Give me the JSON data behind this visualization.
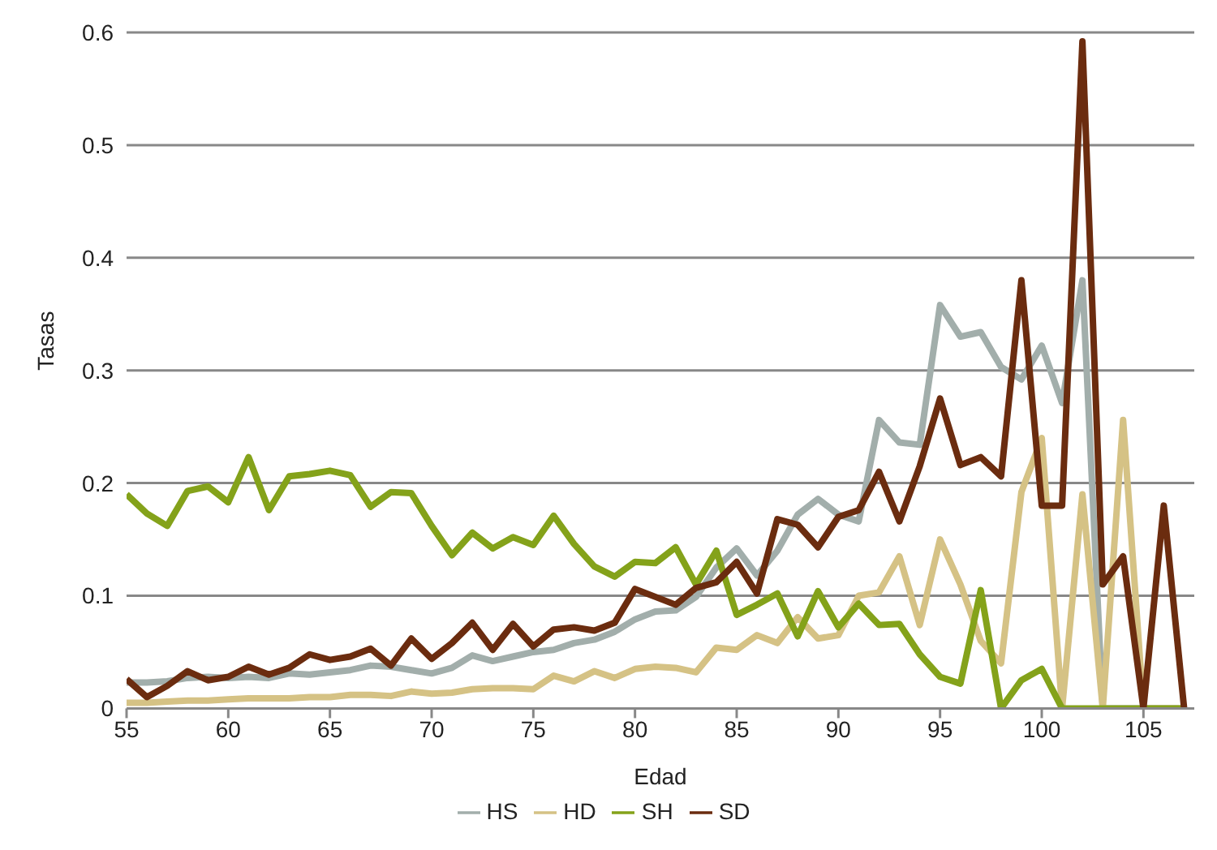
{
  "chart_data": {
    "type": "line",
    "xlabel": "Edad",
    "ylabel": "Tasas",
    "x": [
      55,
      56,
      57,
      58,
      59,
      60,
      61,
      62,
      63,
      64,
      65,
      66,
      67,
      68,
      69,
      70,
      71,
      72,
      73,
      74,
      75,
      76,
      77,
      78,
      79,
      80,
      81,
      82,
      83,
      84,
      85,
      86,
      87,
      88,
      89,
      90,
      91,
      92,
      93,
      94,
      95,
      96,
      97,
      98,
      99,
      100,
      101,
      102,
      103,
      104,
      105,
      106,
      107
    ],
    "xlim": [
      55,
      107.5
    ],
    "xticks": [
      55,
      60,
      65,
      70,
      75,
      80,
      85,
      90,
      95,
      100,
      105
    ],
    "ylim": [
      0,
      0.6
    ],
    "yticks": [
      0,
      0.1,
      0.2,
      0.3,
      0.4,
      0.5,
      0.6
    ],
    "grid": "y",
    "legend": "bottom",
    "marker": "none",
    "line_style": "solid",
    "series": [
      {
        "name": "HS",
        "color": "#a2aeab",
        "values": [
          0.023,
          0.023,
          0.024,
          0.027,
          0.028,
          0.027,
          0.028,
          0.027,
          0.031,
          0.03,
          0.032,
          0.034,
          0.038,
          0.037,
          0.034,
          0.031,
          0.036,
          0.047,
          0.042,
          0.046,
          0.05,
          0.052,
          0.058,
          0.061,
          0.068,
          0.079,
          0.086,
          0.087,
          0.099,
          0.125,
          0.142,
          0.118,
          0.14,
          0.172,
          0.186,
          0.172,
          0.166,
          0.256,
          0.236,
          0.234,
          0.358,
          0.33,
          0.334,
          0.303,
          0.292,
          0.322,
          0.271,
          0.38,
          0,
          0,
          0,
          0,
          0
        ]
      },
      {
        "name": "HD",
        "color": "#d5c285",
        "values": [
          0.005,
          0.005,
          0.006,
          0.007,
          0.007,
          0.008,
          0.009,
          0.009,
          0.009,
          0.01,
          0.01,
          0.012,
          0.012,
          0.011,
          0.015,
          0.013,
          0.014,
          0.017,
          0.018,
          0.018,
          0.017,
          0.029,
          0.024,
          0.033,
          0.027,
          0.035,
          0.037,
          0.036,
          0.032,
          0.054,
          0.052,
          0.065,
          0.058,
          0.081,
          0.062,
          0.065,
          0.1,
          0.103,
          0.135,
          0.074,
          0.15,
          0.11,
          0.06,
          0.04,
          0.192,
          0.24,
          0,
          0.19,
          0,
          0.256,
          0,
          0,
          0
        ]
      },
      {
        "name": "SH",
        "color": "#84a21a",
        "values": [
          0.19,
          0.173,
          0.162,
          0.193,
          0.197,
          0.183,
          0.223,
          0.176,
          0.206,
          0.208,
          0.211,
          0.207,
          0.179,
          0.192,
          0.191,
          0.162,
          0.136,
          0.156,
          0.142,
          0.152,
          0.145,
          0.171,
          0.146,
          0.126,
          0.117,
          0.13,
          0.129,
          0.143,
          0.11,
          0.14,
          0.083,
          0.092,
          0.102,
          0.064,
          0.104,
          0.072,
          0.093,
          0.074,
          0.075,
          0.048,
          0.028,
          0.022,
          0.105,
          0,
          0.025,
          0.035,
          0,
          0,
          0,
          0,
          0,
          0,
          0
        ]
      },
      {
        "name": "SD",
        "color": "#6b2c0f",
        "values": [
          0.026,
          0.01,
          0.02,
          0.033,
          0.025,
          0.028,
          0.037,
          0.03,
          0.036,
          0.048,
          0.043,
          0.046,
          0.053,
          0.038,
          0.062,
          0.044,
          0.058,
          0.076,
          0.052,
          0.075,
          0.055,
          0.07,
          0.072,
          0.069,
          0.076,
          0.106,
          0.099,
          0.092,
          0.107,
          0.112,
          0.13,
          0.102,
          0.168,
          0.163,
          0.143,
          0.17,
          0.176,
          0.21,
          0.166,
          0.215,
          0.275,
          0.216,
          0.223,
          0.206,
          0.38,
          0.18,
          0.18,
          0.592,
          0.11,
          0.135,
          0,
          0.18,
          0
        ]
      }
    ]
  }
}
